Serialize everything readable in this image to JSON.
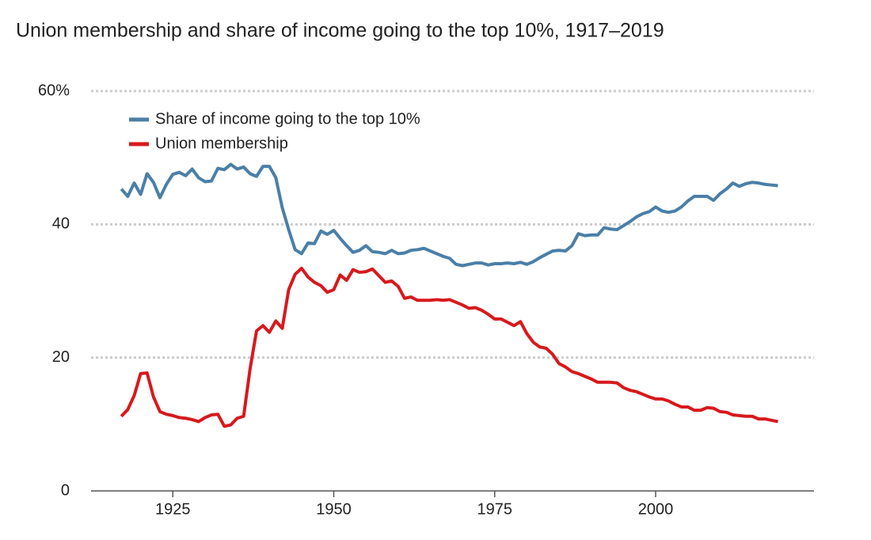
{
  "chart_data": {
    "type": "line",
    "title": "Union membership and share of income going to the top 10%, 1917–2019",
    "x": [
      1917,
      1918,
      1919,
      1920,
      1921,
      1922,
      1923,
      1924,
      1925,
      1926,
      1927,
      1928,
      1929,
      1930,
      1931,
      1932,
      1933,
      1934,
      1935,
      1936,
      1937,
      1938,
      1939,
      1940,
      1941,
      1942,
      1943,
      1944,
      1945,
      1946,
      1947,
      1948,
      1949,
      1950,
      1951,
      1952,
      1953,
      1954,
      1955,
      1956,
      1957,
      1958,
      1959,
      1960,
      1961,
      1962,
      1963,
      1964,
      1965,
      1966,
      1967,
      1968,
      1969,
      1970,
      1971,
      1972,
      1973,
      1974,
      1975,
      1976,
      1977,
      1978,
      1979,
      1980,
      1981,
      1982,
      1983,
      1984,
      1985,
      1986,
      1987,
      1988,
      1989,
      1990,
      1991,
      1992,
      1993,
      1994,
      1995,
      1996,
      1997,
      1998,
      1999,
      2000,
      2001,
      2002,
      2003,
      2004,
      2005,
      2006,
      2007,
      2008,
      2009,
      2010,
      2011,
      2012,
      2013,
      2014,
      2015,
      2016,
      2017,
      2018,
      2019
    ],
    "series": [
      {
        "name": "Share of income going to the top 10%",
        "color": "#4a7fa8",
        "values": [
          45.3,
          44.2,
          46.2,
          44.5,
          47.6,
          46.3,
          44.0,
          46.0,
          47.5,
          47.8,
          47.3,
          48.3,
          47.0,
          46.4,
          46.5,
          48.4,
          48.2,
          49.0,
          48.3,
          48.6,
          47.6,
          47.2,
          48.7,
          48.7,
          47.0,
          42.5,
          39.2,
          36.2,
          35.6,
          37.2,
          37.1,
          39.0,
          38.5,
          39.1,
          37.9,
          36.8,
          35.8,
          36.1,
          36.8,
          35.9,
          35.8,
          35.6,
          36.1,
          35.6,
          35.7,
          36.1,
          36.2,
          36.4,
          36.0,
          35.6,
          35.2,
          34.9,
          34.0,
          33.8,
          34.0,
          34.2,
          34.2,
          33.9,
          34.1,
          34.1,
          34.2,
          34.1,
          34.3,
          34.0,
          34.4,
          35.0,
          35.5,
          36.0,
          36.1,
          36.0,
          36.8,
          38.6,
          38.3,
          38.4,
          38.4,
          39.5,
          39.3,
          39.2,
          39.8,
          40.4,
          41.1,
          41.6,
          41.9,
          42.6,
          42.0,
          41.8,
          42.0,
          42.6,
          43.5,
          44.2,
          44.2,
          44.2,
          43.6,
          44.6,
          45.3,
          46.2,
          45.7,
          46.1,
          46.3,
          46.2,
          46.0,
          45.9,
          45.8
        ]
      },
      {
        "name": "Union membership",
        "color": "#d7191c",
        "values": [
          11.2,
          12.2,
          14.3,
          17.6,
          17.7,
          14.1,
          11.9,
          11.5,
          11.3,
          11.0,
          10.9,
          10.7,
          10.4,
          11.0,
          11.4,
          11.5,
          9.7,
          9.9,
          10.9,
          11.2,
          18.3,
          24.0,
          24.8,
          23.8,
          25.5,
          24.4,
          30.2,
          32.5,
          33.4,
          32.1,
          31.3,
          30.8,
          29.8,
          30.2,
          32.4,
          31.6,
          33.2,
          32.8,
          32.9,
          33.3,
          32.3,
          31.3,
          31.5,
          30.7,
          28.9,
          29.1,
          28.6,
          28.6,
          28.6,
          28.7,
          28.6,
          28.7,
          28.3,
          27.9,
          27.4,
          27.5,
          27.1,
          26.5,
          25.8,
          25.8,
          25.3,
          24.8,
          25.4,
          23.6,
          22.3,
          21.6,
          21.4,
          20.5,
          19.1,
          18.6,
          17.9,
          17.6,
          17.2,
          16.8,
          16.3,
          16.3,
          16.3,
          16.2,
          15.5,
          15.1,
          14.9,
          14.5,
          14.1,
          13.8,
          13.8,
          13.5,
          13.0,
          12.6,
          12.6,
          12.1,
          12.1,
          12.5,
          12.4,
          11.9,
          11.8,
          11.4,
          11.3,
          11.2,
          11.2,
          10.8,
          10.8,
          10.6,
          10.4
        ]
      }
    ],
    "xlim": [
      1912.3,
      2024.6
    ],
    "xticks": [
      1925,
      1950,
      1975,
      2000
    ],
    "ylim": [
      0,
      60
    ],
    "yticks": [
      0,
      20,
      40,
      {
        "value": 60,
        "label": "60%"
      }
    ],
    "grid": true,
    "legend": "top-left"
  }
}
